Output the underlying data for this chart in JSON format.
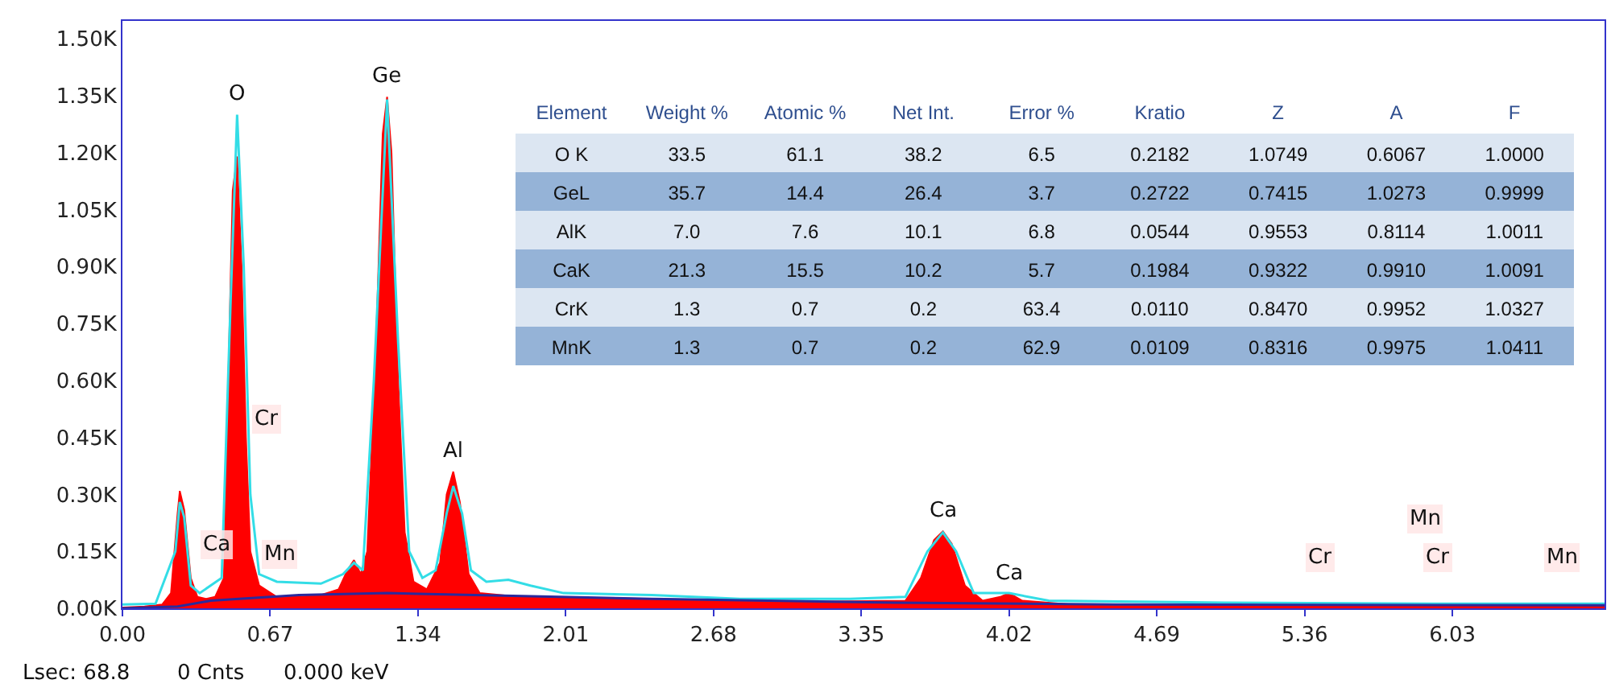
{
  "chart_data": [
    {
      "type": "area",
      "xlim": [
        0,
        6.72
      ],
      "ylim": [
        0,
        1547
      ],
      "xticks": [
        {
          "value": 0,
          "label": "0.00"
        },
        {
          "value": 0.67,
          "label": "0.67"
        },
        {
          "value": 1.34,
          "label": "1.34"
        },
        {
          "value": 2.01,
          "label": "2.01"
        },
        {
          "value": 2.68,
          "label": "2.68"
        },
        {
          "value": 3.35,
          "label": "3.35"
        },
        {
          "value": 4.02,
          "label": "4.02"
        },
        {
          "value": 4.69,
          "label": "4.69"
        },
        {
          "value": 5.36,
          "label": "5.36"
        },
        {
          "value": 6.03,
          "label": "6.03"
        }
      ],
      "yticks": [
        {
          "value": 0,
          "label": "0.00K"
        },
        {
          "value": 150,
          "label": "0.15K"
        },
        {
          "value": 300,
          "label": "0.30K"
        },
        {
          "value": 450,
          "label": "0.45K"
        },
        {
          "value": 600,
          "label": "0.60K"
        },
        {
          "value": 750,
          "label": "0.75K"
        },
        {
          "value": 900,
          "label": "0.90K"
        },
        {
          "value": 1050,
          "label": "1.05K"
        },
        {
          "value": 1200,
          "label": "1.20K"
        },
        {
          "value": 1350,
          "label": "1.35K"
        },
        {
          "value": 1500,
          "label": "1.50K"
        }
      ],
      "series": [
        {
          "type": "area",
          "color": "#ff0000",
          "x": [
            0,
            0.1,
            0.18,
            0.22,
            0.25,
            0.26,
            0.28,
            0.31,
            0.34,
            0.38,
            0.42,
            0.46,
            0.48,
            0.5,
            0.52,
            0.54,
            0.56,
            0.58,
            0.62,
            0.7,
            0.8,
            0.9,
            0.98,
            1.02,
            1.05,
            1.08,
            1.11,
            1.15,
            1.18,
            1.2,
            1.22,
            1.25,
            1.28,
            1.32,
            1.38,
            1.44,
            1.47,
            1.5,
            1.53,
            1.57,
            1.62,
            1.8,
            2.0,
            2.4,
            2.8,
            3.2,
            3.55,
            3.62,
            3.68,
            3.72,
            3.76,
            3.82,
            3.9,
            3.98,
            4.02,
            4.08,
            4.3,
            5.0,
            6.0,
            6.72
          ],
          "values": [
            2,
            5,
            10,
            40,
            250,
            309,
            260,
            80,
            30,
            25,
            30,
            80,
            600,
            1100,
            1190,
            900,
            450,
            150,
            60,
            30,
            30,
            35,
            50,
            100,
            127,
            90,
            150,
            700,
            1250,
            1347,
            1200,
            600,
            200,
            70,
            50,
            120,
            300,
            360,
            280,
            90,
            40,
            30,
            28,
            25,
            20,
            18,
            20,
            80,
            180,
            203,
            170,
            60,
            20,
            30,
            40,
            20,
            10,
            8,
            5,
            5
          ]
        },
        {
          "type": "line",
          "color": "#33dde6",
          "x": [
            0,
            0.15,
            0.24,
            0.26,
            0.28,
            0.31,
            0.35,
            0.45,
            0.49,
            0.52,
            0.55,
            0.58,
            0.62,
            0.7,
            0.9,
            1.0,
            1.05,
            1.09,
            1.14,
            1.2,
            1.25,
            1.3,
            1.36,
            1.42,
            1.47,
            1.5,
            1.54,
            1.58,
            1.65,
            1.75,
            1.85,
            2.0,
            2.4,
            2.8,
            3.3,
            3.55,
            3.65,
            3.72,
            3.78,
            3.86,
            4.02,
            4.2,
            5.0,
            6.0,
            6.72
          ],
          "values": [
            10,
            12,
            150,
            280,
            240,
            60,
            40,
            80,
            800,
            1300,
            900,
            300,
            90,
            70,
            65,
            90,
            120,
            100,
            600,
            1340,
            700,
            150,
            80,
            100,
            250,
            322,
            250,
            100,
            70,
            75,
            60,
            40,
            35,
            25,
            25,
            30,
            150,
            200,
            150,
            40,
            40,
            20,
            15,
            12,
            12
          ]
        },
        {
          "type": "line",
          "color": "#2a2a9c",
          "x": [
            0,
            0.25,
            0.4,
            0.8,
            1.2,
            1.6,
            2.4,
            3.5,
            4.5,
            6.72
          ],
          "values": [
            0,
            5,
            20,
            35,
            40,
            35,
            25,
            15,
            10,
            8
          ]
        }
      ],
      "annotations": [
        {
          "text": "O",
          "x": 0.52,
          "y": 1300
        },
        {
          "text": "Ge",
          "x": 1.2,
          "y": 1347
        },
        {
          "text": "Al",
          "x": 1.5,
          "y": 360
        },
        {
          "text": "Ca",
          "x": 3.72,
          "y": 203
        },
        {
          "text": "Ca",
          "x": 4.02,
          "y": 40
        },
        "Ca",
        "Cr",
        "Mn",
        "Cr",
        "Mn",
        "Cr",
        "Mn",
        "Lsec: 68.8",
        "0 Cnts",
        "0.000 keV"
      ]
    },
    {
      "type": "other",
      "categories": [
        "Element",
        "Weight %",
        "Atomic %",
        "Net Int.",
        "Error %",
        "Kratio",
        "Z",
        "A",
        "F"
      ],
      "y_categories": [
        "O K",
        "GeL",
        "AlK",
        "CaK",
        "CrK",
        "MnK"
      ],
      "colors": [
        "#dce6f2",
        "#95b3d7",
        "#dce6f2",
        "#95b3d7",
        "#dce6f2",
        "#95b3d7"
      ],
      "annotations": [
        "33.5",
        "61.1",
        "38.2",
        "6.5",
        "0.2182",
        "1.0749",
        "0.6067",
        "1.0000",
        "35.7",
        "14.4",
        "26.4",
        "3.7",
        "0.2722",
        "0.7415",
        "1.0273",
        "0.9999",
        "7.0",
        "7.6",
        "10.1",
        "6.8",
        "0.0544",
        "0.9553",
        "0.8114",
        "1.0011",
        "21.3",
        "15.5",
        "10.2",
        "5.7",
        "0.1984",
        "0.9322",
        "0.9910",
        "1.0091",
        "1.3",
        "0.7",
        "0.2",
        "63.4",
        "0.0110",
        "0.8470",
        "0.9952",
        "1.0327",
        "1.3",
        "0.7",
        "0.2",
        "62.9",
        "0.0109",
        "0.8316",
        "0.9975",
        "1.0411"
      ]
    }
  ]
}
